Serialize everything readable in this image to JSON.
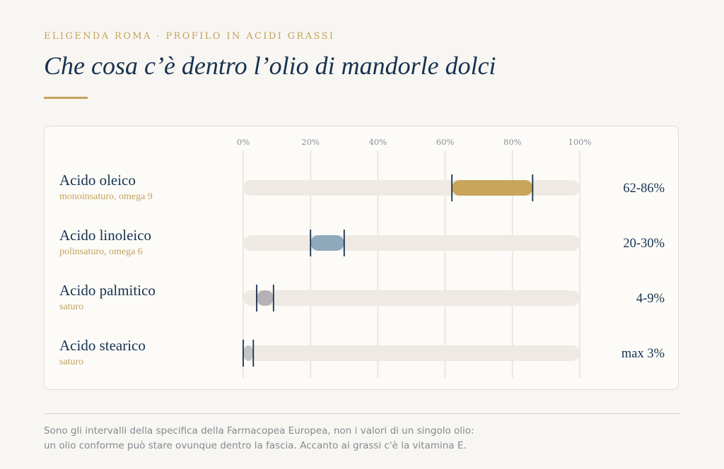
{
  "header": {
    "eyebrow": "ELIGENDA ROMA · PROFILO IN ACIDI GRASSI",
    "title": "Che cosa c’è dentro l’olio di mandorle dolci"
  },
  "footnote": {
    "line1": "Sono gli intervalli della specifica della Farmacopea Europea, non i valori di un singolo olio:",
    "line2": "un olio conforme può stare ovunque dentro la fascia. Accanto ai grassi c'è la vitamina E."
  },
  "chart_data": {
    "type": "bar",
    "orientation": "horizontal-range",
    "xlim": [
      0,
      100
    ],
    "ticks": [
      0,
      20,
      40,
      60,
      80,
      100
    ],
    "tick_labels": [
      "0%",
      "20%",
      "40%",
      "60%",
      "80%",
      "100%"
    ],
    "grid": true,
    "series": [
      {
        "label": "Acido oleico",
        "subtitle": "monoinsaturo, omega 9",
        "min": 62,
        "max": 86,
        "value_label": "62-86%",
        "color": "#c8a55a"
      },
      {
        "label": "Acido linoleico",
        "subtitle": "polinsaturo, omega 6",
        "min": 20,
        "max": 30,
        "value_label": "20-30%",
        "color": "#8fa9bc"
      },
      {
        "label": "Acido palmitico",
        "subtitle": "saturo",
        "min": 4,
        "max": 9,
        "value_label": "4-9%",
        "color": "#b4b2b6"
      },
      {
        "label": "Acido stearico",
        "subtitle": "saturo",
        "min": 0,
        "max": 3,
        "value_label": "max 3%",
        "color": "#c4c4c6"
      }
    ]
  },
  "colors": {
    "navy": "#16324f",
    "gold": "#c5a25c",
    "track": "#eee9e2",
    "grid": "#ece7de"
  }
}
